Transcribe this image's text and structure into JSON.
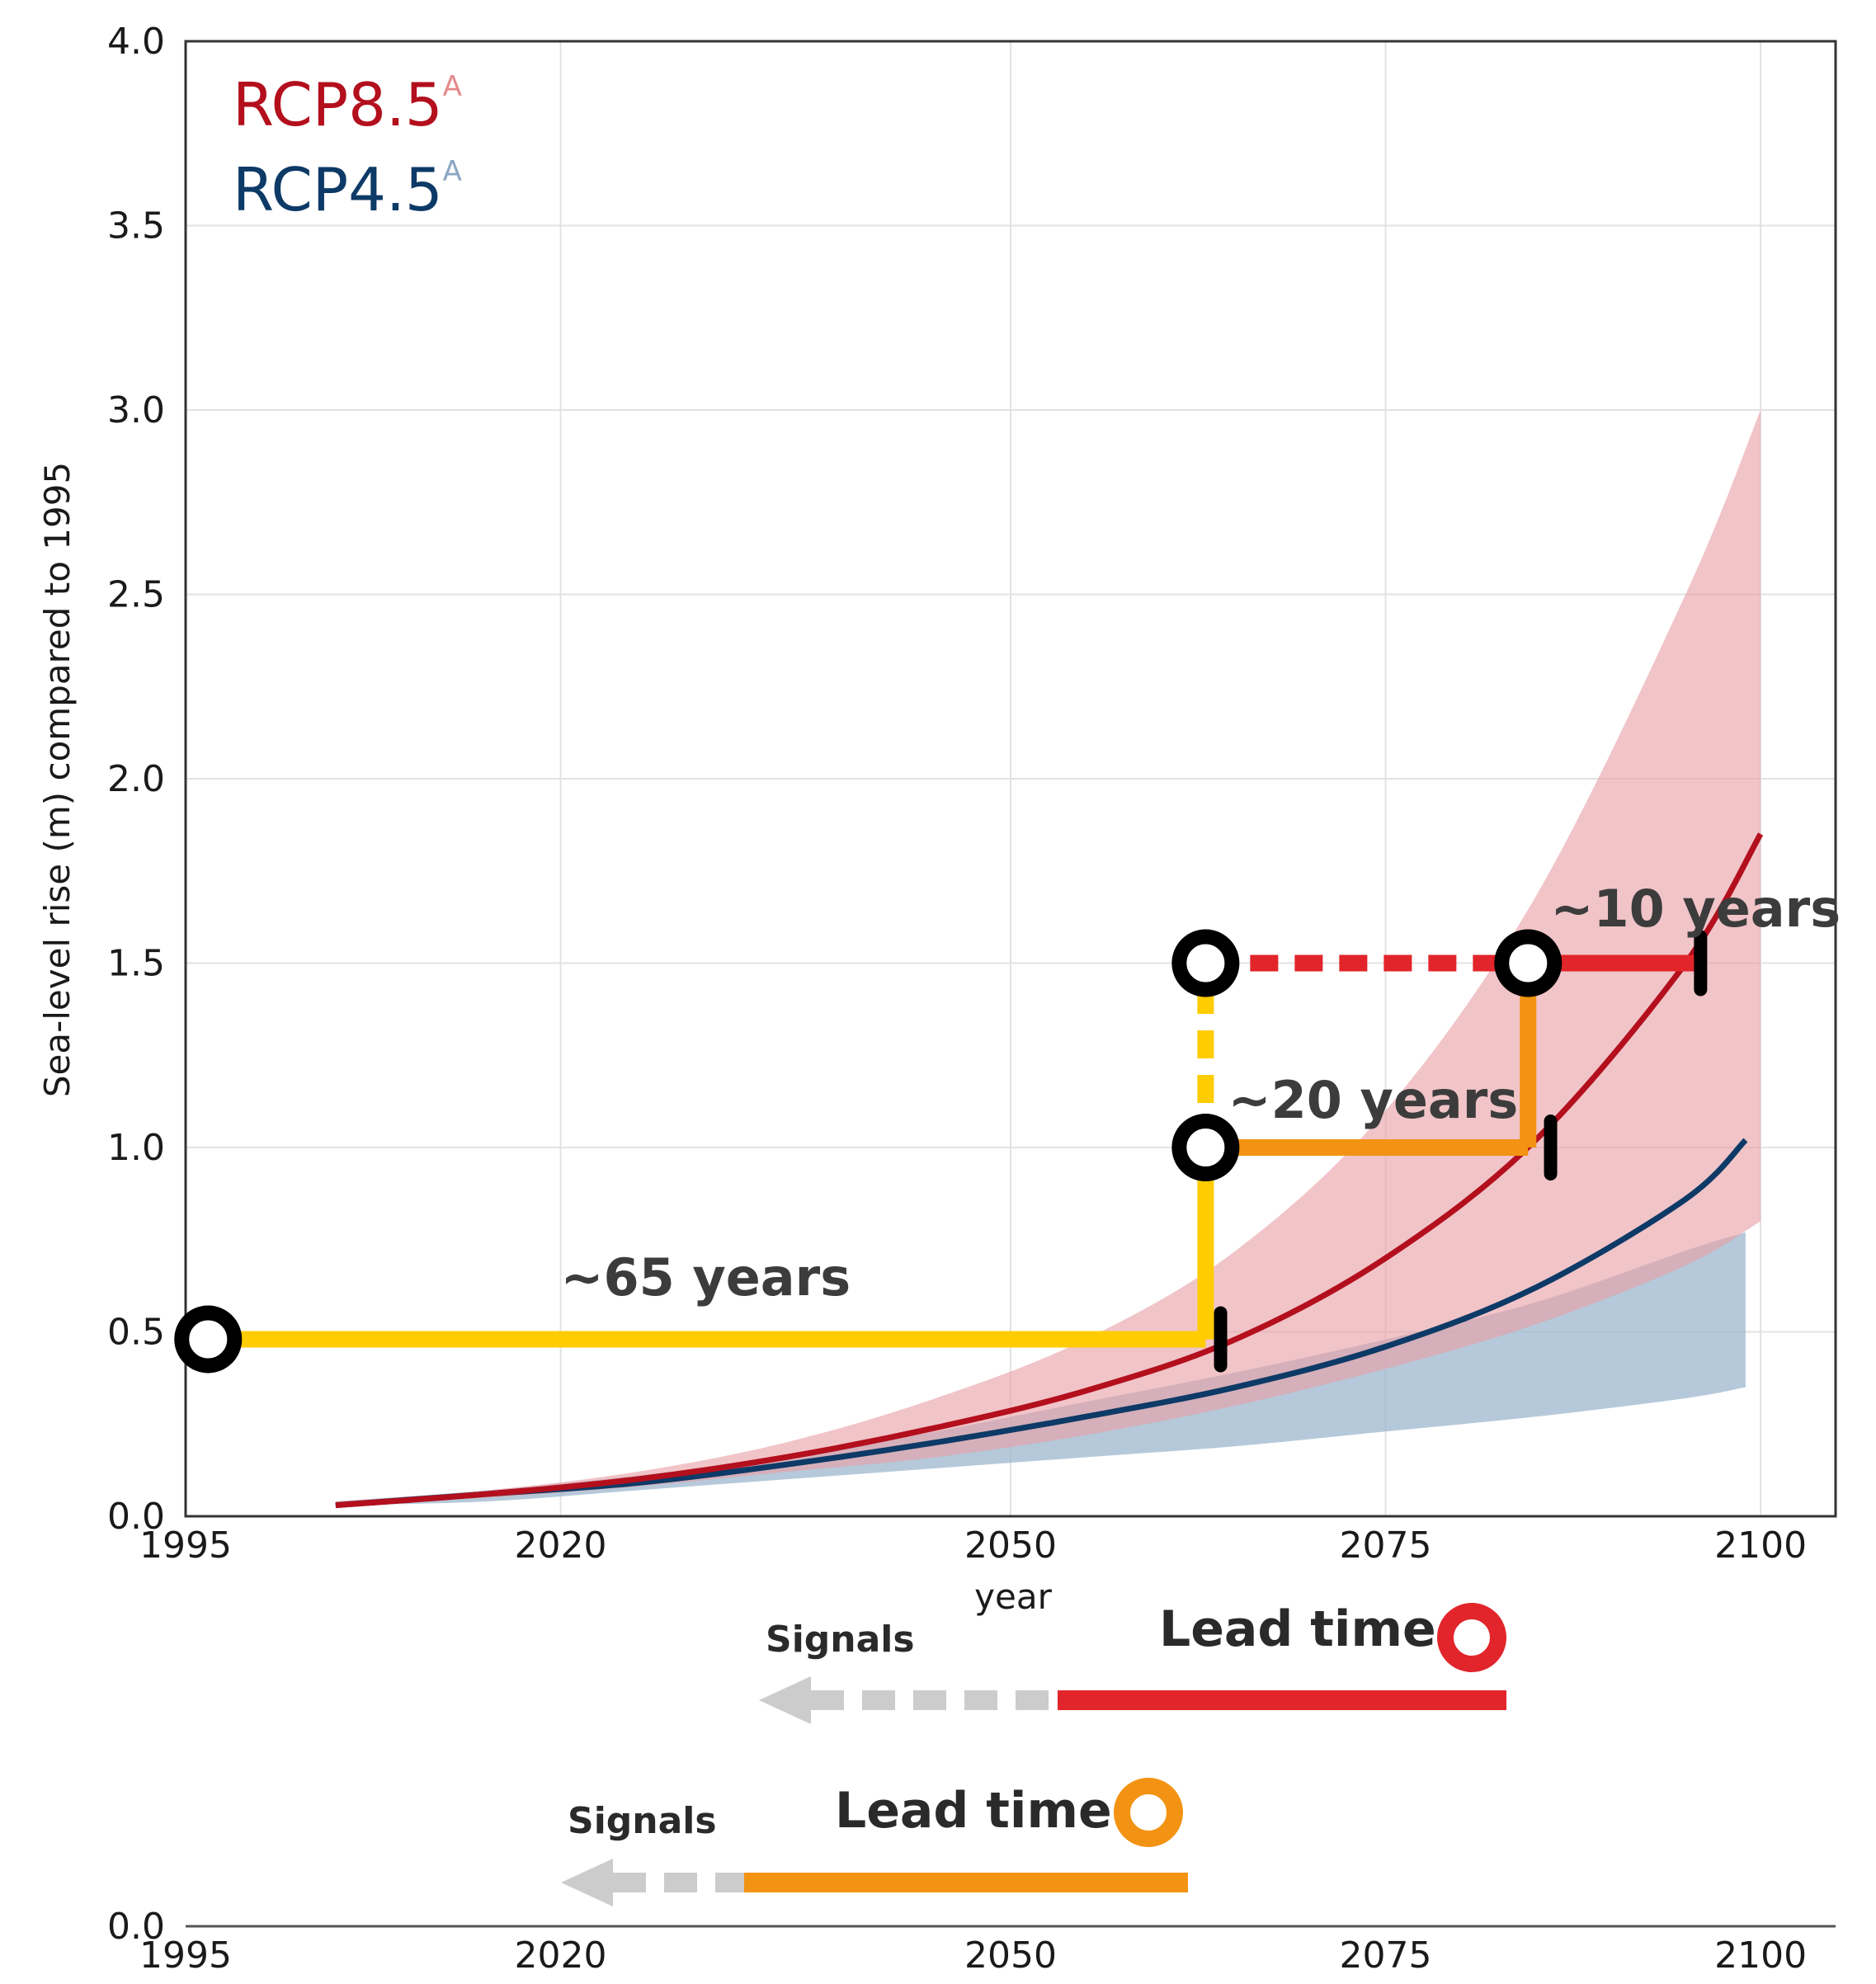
{
  "chart_data": {
    "type": "line",
    "xlabel": "year",
    "ylabel": "Sea-level rise (m) compared to 1995",
    "xlim": [
      1995,
      2105
    ],
    "ylim": [
      0,
      4.0
    ],
    "x_ticks": [
      1995,
      2020,
      2050,
      2075,
      2100
    ],
    "y_ticks": [
      "0.0",
      "0.5",
      "1.0",
      "1.5",
      "2.0",
      "2.5",
      "3.0",
      "3.5",
      "4.0"
    ],
    "grid": true,
    "legend_position": "top-left",
    "legend": [
      {
        "label": "RCP8.5",
        "sup": "A",
        "color": "#b30f1d",
        "sup_color": "#e58a8a"
      },
      {
        "label": "RCP4.5",
        "sup": "A",
        "color": "#0d3a66",
        "sup_color": "#8aa6c2"
      }
    ],
    "series": [
      {
        "name": "RCP8.5",
        "color": "#b30f1d",
        "band_color": "#e8a0a6",
        "x": [
          2005,
          2015,
          2025,
          2035,
          2045,
          2055,
          2065,
          2075,
          2085,
          2095,
          2100
        ],
        "median": [
          0.03,
          0.06,
          0.1,
          0.16,
          0.24,
          0.34,
          0.48,
          0.7,
          1.02,
          1.5,
          1.85
        ],
        "lower": [
          0.03,
          0.05,
          0.08,
          0.12,
          0.16,
          0.22,
          0.3,
          0.4,
          0.52,
          0.68,
          0.8
        ],
        "upper": [
          0.04,
          0.07,
          0.12,
          0.2,
          0.32,
          0.48,
          0.72,
          1.1,
          1.68,
          2.5,
          3.0
        ]
      },
      {
        "name": "RCP4.5",
        "color": "#0d3a66",
        "band_color": "#9cb7cd",
        "x": [
          2005,
          2015,
          2025,
          2035,
          2045,
          2055,
          2065,
          2075,
          2085,
          2095,
          2099
        ],
        "median": [
          0.03,
          0.06,
          0.09,
          0.14,
          0.2,
          0.27,
          0.35,
          0.46,
          0.62,
          0.86,
          1.02
        ],
        "lower": [
          0.03,
          0.04,
          0.07,
          0.1,
          0.13,
          0.16,
          0.19,
          0.23,
          0.27,
          0.32,
          0.35
        ],
        "upper": [
          0.04,
          0.07,
          0.11,
          0.16,
          0.23,
          0.31,
          0.39,
          0.48,
          0.58,
          0.72,
          0.77
        ]
      }
    ],
    "pathways": [
      {
        "name": "yellow",
        "color": "#ffcc00",
        "from": [
          1996.5,
          0.48
        ],
        "to": [
          2063,
          0.48
        ],
        "tick": [
          2064,
          0.48
        ]
      },
      {
        "name": "yellow-vertical",
        "color": "#ffcc00",
        "from": [
          2063,
          0.48
        ],
        "to": [
          2063,
          1.0
        ]
      },
      {
        "name": "yellow-dashed",
        "color": "#ffcc00",
        "dashed": true,
        "from": [
          2063,
          1.0
        ],
        "to": [
          2063,
          1.5
        ]
      },
      {
        "name": "orange",
        "color": "#f39313",
        "from": [
          2063,
          1.0
        ],
        "to": [
          2084.5,
          1.0
        ],
        "tick": [
          2086,
          1.0
        ]
      },
      {
        "name": "orange-vertical",
        "color": "#f39313",
        "from": [
          2084.5,
          1.0
        ],
        "to": [
          2084.5,
          1.5
        ]
      },
      {
        "name": "red-dashed",
        "color": "#e2252b",
        "dashed": true,
        "from": [
          2063,
          1.5
        ],
        "to": [
          2084.5,
          1.5
        ]
      },
      {
        "name": "red",
        "color": "#e2252b",
        "from": [
          2084.5,
          1.5
        ],
        "to": [
          2096,
          1.5
        ],
        "tick": [
          2096,
          1.5
        ]
      }
    ],
    "decision_points": [
      [
        1996.5,
        0.48
      ],
      [
        2063,
        1.0
      ],
      [
        2063,
        1.5
      ],
      [
        2084.5,
        1.5
      ]
    ],
    "annotations": [
      {
        "text": "~65 years",
        "x": 2020,
        "y": 0.6
      },
      {
        "text": "~20 years",
        "x": 2064.5,
        "y": 1.08
      },
      {
        "text": "~10 years",
        "x": 2086,
        "y": 1.6
      }
    ],
    "lower_panel": {
      "x_ticks": [
        1995,
        2020,
        2050,
        2075,
        2100
      ],
      "y_tick": "0.0",
      "red_signals_label": "Signals",
      "red_lead_label": "Lead time",
      "orange_signals_label": "Signals",
      "orange_lead_label": "Lead time"
    }
  }
}
